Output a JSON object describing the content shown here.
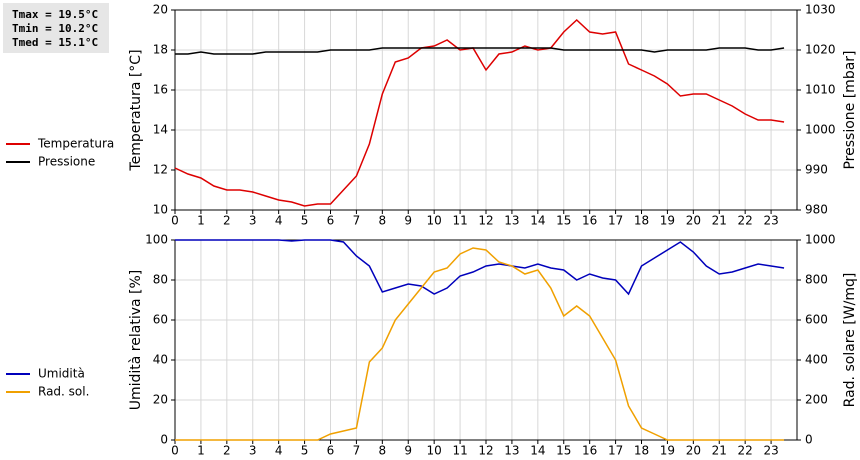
{
  "chart_data": [
    {
      "type": "line",
      "annotations": [
        "Tmax = 19.5°C",
        "Tmin = 10.2°C",
        "Tmed = 15.1°C"
      ],
      "ylabel": "Temperatura [°C]",
      "y2label": "Pressione [mbar]",
      "x": [
        0,
        0.5,
        1,
        1.5,
        2,
        2.5,
        3,
        3.5,
        4,
        4.5,
        5,
        5.5,
        6,
        6.5,
        7,
        7.5,
        8,
        8.5,
        9,
        9.5,
        10,
        10.5,
        11,
        11.5,
        12,
        12.5,
        13,
        13.5,
        14,
        14.5,
        15,
        15.5,
        16,
        16.5,
        17,
        17.5,
        18,
        18.5,
        19,
        19.5,
        20,
        20.5,
        21,
        21.5,
        22,
        22.5,
        23,
        23.5
      ],
      "xlim": [
        0,
        24
      ],
      "xticks": [
        0,
        1,
        2,
        3,
        4,
        5,
        6,
        7,
        8,
        9,
        10,
        11,
        12,
        13,
        14,
        15,
        16,
        17,
        18,
        19,
        20,
        21,
        22,
        23
      ],
      "ylim": [
        10,
        20
      ],
      "yticks": [
        10,
        12,
        14,
        16,
        18,
        20
      ],
      "y2lim": [
        980,
        1030
      ],
      "y2ticks": [
        980,
        990,
        1000,
        1010,
        1020,
        1030
      ],
      "grid": true,
      "legend": "left",
      "series": [
        {
          "name": "Temperatura",
          "color": "#dd0000",
          "values": [
            12.1,
            11.8,
            11.6,
            11.2,
            11.0,
            11.0,
            10.9,
            10.7,
            10.5,
            10.4,
            10.2,
            10.3,
            10.3,
            11.0,
            11.7,
            13.3,
            15.8,
            17.4,
            17.6,
            18.1,
            18.2,
            18.5,
            18.0,
            18.1,
            17.0,
            17.8,
            17.9,
            18.2,
            18.0,
            18.1,
            18.9,
            19.5,
            18.9,
            18.8,
            18.9,
            17.3,
            17.0,
            16.7,
            16.3,
            15.7,
            15.8,
            15.8,
            15.5,
            15.2,
            14.8,
            14.5,
            14.5,
            14.4
          ]
        },
        {
          "name": "Pressione",
          "color": "#000000",
          "axis": "y2",
          "values": [
            1019,
            1019,
            1019.5,
            1019,
            1019,
            1019,
            1019,
            1019.5,
            1019.5,
            1019.5,
            1019.5,
            1019.5,
            1020,
            1020,
            1020,
            1020,
            1020.5,
            1020.5,
            1020.5,
            1020.5,
            1020.5,
            1020.5,
            1020.5,
            1020.5,
            1020.5,
            1020.5,
            1020.5,
            1020.5,
            1020.5,
            1020.5,
            1020,
            1020,
            1020,
            1020,
            1020,
            1020,
            1020,
            1019.5,
            1020,
            1020,
            1020,
            1020,
            1020.5,
            1020.5,
            1020.5,
            1020,
            1020,
            1020.5
          ]
        }
      ]
    },
    {
      "type": "line",
      "ylabel": "Umidità relativa [%]",
      "y2label": "Rad. solare [W/mq]",
      "x": [
        0,
        0.5,
        1,
        1.5,
        2,
        2.5,
        3,
        3.5,
        4,
        4.5,
        5,
        5.5,
        6,
        6.5,
        7,
        7.5,
        8,
        8.5,
        9,
        9.5,
        10,
        10.5,
        11,
        11.5,
        12,
        12.5,
        13,
        13.5,
        14,
        14.5,
        15,
        15.5,
        16,
        16.5,
        17,
        17.5,
        18,
        18.5,
        19,
        19.5,
        20,
        20.5,
        21,
        21.5,
        22,
        22.5,
        23,
        23.5
      ],
      "xlim": [
        0,
        24
      ],
      "xticks": [
        0,
        1,
        2,
        3,
        4,
        5,
        6,
        7,
        8,
        9,
        10,
        11,
        12,
        13,
        14,
        15,
        16,
        17,
        18,
        19,
        20,
        21,
        22,
        23
      ],
      "ylim": [
        0,
        100
      ],
      "yticks": [
        0,
        20,
        40,
        60,
        80,
        100
      ],
      "y2lim": [
        0,
        1000
      ],
      "y2ticks": [
        0,
        200,
        400,
        600,
        800,
        1000
      ],
      "grid": true,
      "legend": "left",
      "series": [
        {
          "name": "Umidità",
          "color": "#0000bb",
          "values": [
            100,
            100,
            100,
            100,
            100,
            100,
            100,
            100,
            100,
            99.5,
            100,
            100,
            100,
            99,
            92,
            87,
            74,
            76,
            78,
            77,
            73,
            76,
            82,
            84,
            87,
            88,
            87,
            86,
            88,
            86,
            85,
            80,
            83,
            81,
            80,
            73,
            87,
            91,
            95,
            99,
            94,
            87,
            83,
            84,
            86,
            88,
            87,
            86
          ]
        },
        {
          "name": "Rad. sol.",
          "color": "#f0a000",
          "axis": "y2",
          "values": [
            0,
            0,
            0,
            0,
            0,
            0,
            0,
            0,
            0,
            0,
            0,
            0,
            30,
            45,
            60,
            390,
            460,
            600,
            680,
            760,
            840,
            860,
            930,
            960,
            950,
            890,
            870,
            830,
            850,
            760,
            620,
            670,
            620,
            510,
            400,
            170,
            60,
            30,
            0,
            0,
            0,
            0,
            0,
            0,
            0,
            0,
            0,
            0
          ]
        }
      ]
    }
  ]
}
